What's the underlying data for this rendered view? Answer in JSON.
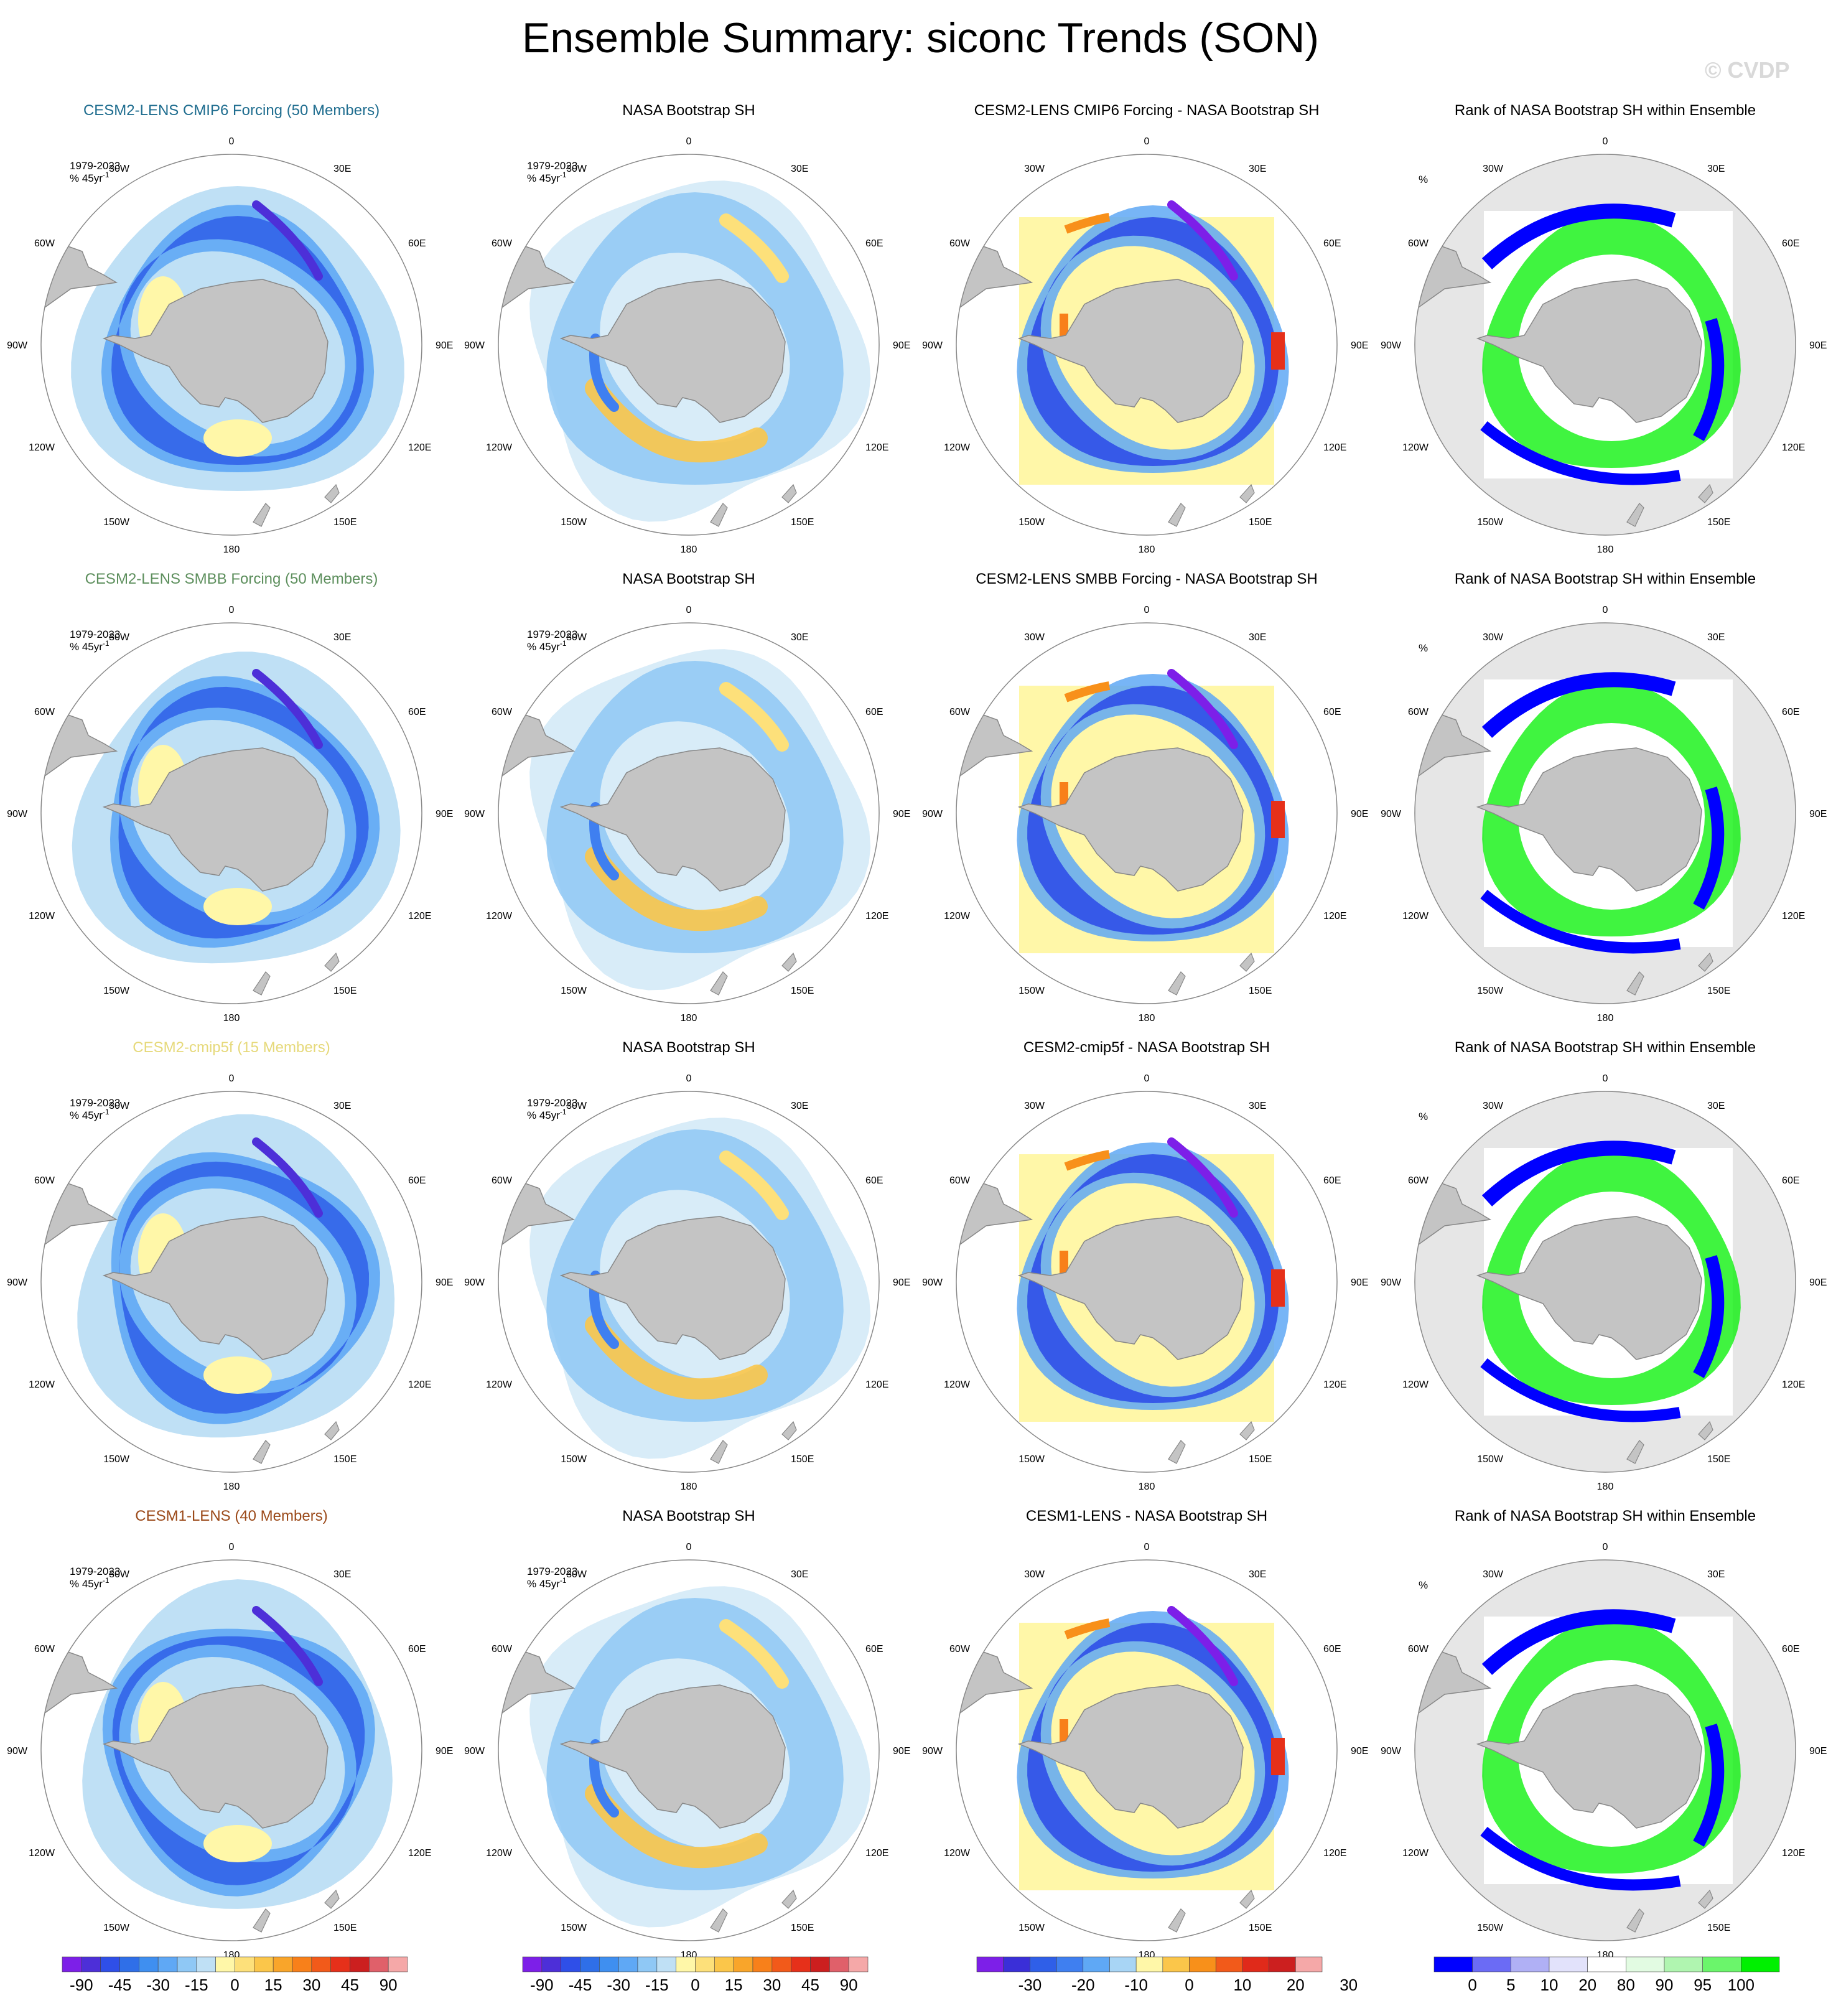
{
  "title": "Ensemble Summary: siconc Trends (SON)",
  "watermark": "© CVDP",
  "chart_data": {
    "type": "heatmap",
    "projection": "south-polar-stereographic",
    "grid": true,
    "colors": {
      "land": "#c4c4c4",
      "rank_background": "#e6e6e6",
      "title_cmip6": "#1f6d8f",
      "title_smbb": "#5d8f5d",
      "title_cmip5f": "#e6d97a",
      "title_cesm1": "#9b4a1a"
    },
    "longitude_labels": [
      "0",
      "30E",
      "60E",
      "90E",
      "120E",
      "150E",
      "180",
      "150W",
      "120W",
      "90W",
      "60W",
      "30W"
    ],
    "panel_annotation": [
      "1979-2023",
      "% 45yr"
    ],
    "annotation_superscript": "-1",
    "rank_units": "%",
    "rows": [
      {
        "ensemble_title": "CESM2-LENS CMIP6 Forcing (50 Members)",
        "title_color": "#1f6d8f",
        "obs_title": "NASA Bootstrap SH",
        "diff_title": "CESM2-LENS CMIP6 Forcing - NASA Bootstrap SH",
        "rank_title": "Rank of NASA Bootstrap SH within Ensemble"
      },
      {
        "ensemble_title": "CESM2-LENS SMBB Forcing (50 Members)",
        "title_color": "#5d8f5d",
        "obs_title": "NASA Bootstrap SH",
        "diff_title": "CESM2-LENS SMBB Forcing - NASA Bootstrap SH",
        "rank_title": "Rank of NASA Bootstrap SH within Ensemble"
      },
      {
        "ensemble_title": "CESM2-cmip5f (15 Members)",
        "title_color": "#e6d97a",
        "obs_title": "NASA Bootstrap SH",
        "diff_title": "CESM2-cmip5f - NASA Bootstrap SH",
        "rank_title": "Rank of NASA Bootstrap SH within Ensemble"
      },
      {
        "ensemble_title": "CESM1-LENS (40 Members)",
        "title_color": "#9b4a1a",
        "obs_title": "NASA Bootstrap SH",
        "diff_title": "CESM1-LENS - NASA Bootstrap SH",
        "rank_title": "Rank of NASA Bootstrap SH within Ensemble"
      }
    ],
    "colorbars": [
      {
        "name": "trend",
        "labels": [
          "-90",
          "-45",
          "-30",
          "-15",
          "0",
          "15",
          "30",
          "45",
          "90"
        ],
        "colors": [
          "#7d1fe8",
          "#4d2fd8",
          "#2f4fe8",
          "#2f6fe8",
          "#3f8ff0",
          "#5fa8f5",
          "#8fc8f5",
          "#bfe0f5",
          "#fff7a8",
          "#fde07a",
          "#fbc64a",
          "#f9a52a",
          "#f8801a",
          "#f25a1a",
          "#e6301a",
          "#cc1f1f",
          "#e0606a",
          "#f5a8a8"
        ]
      },
      {
        "name": "trend",
        "labels": [
          "-90",
          "-45",
          "-30",
          "-15",
          "0",
          "15",
          "30",
          "45",
          "90"
        ],
        "colors": [
          "#7d1fe8",
          "#4d2fd8",
          "#2f4fe8",
          "#2f6fe8",
          "#3f8ff0",
          "#5fa8f5",
          "#8fc8f5",
          "#bfe0f5",
          "#fff7a8",
          "#fde07a",
          "#fbc64a",
          "#f9a52a",
          "#f8801a",
          "#f25a1a",
          "#e6301a",
          "#cc1f1f",
          "#e0606a",
          "#f5a8a8"
        ]
      },
      {
        "name": "difference",
        "labels": [
          "-30",
          "-20",
          "-10",
          "0",
          "10",
          "20",
          "30"
        ],
        "colors": [
          "#7d1fe8",
          "#3a2fd8",
          "#2f5fe8",
          "#3f7ff0",
          "#5fa8f5",
          "#a8d5f5",
          "#fff7a8",
          "#fbc64a",
          "#f8901a",
          "#f25a1a",
          "#e02a1a",
          "#cc1f1f",
          "#f5a8a8"
        ]
      },
      {
        "name": "rank",
        "labels": [
          "0",
          "5",
          "10",
          "20",
          "80",
          "90",
          "95",
          "100"
        ],
        "colors": [
          "#0000ff",
          "#6b6bf5",
          "#b0b0f5",
          "#e2e2fb",
          "#ffffff",
          "#e2fbe2",
          "#b0f5b0",
          "#6bf56b",
          "#00f000"
        ]
      }
    ]
  }
}
